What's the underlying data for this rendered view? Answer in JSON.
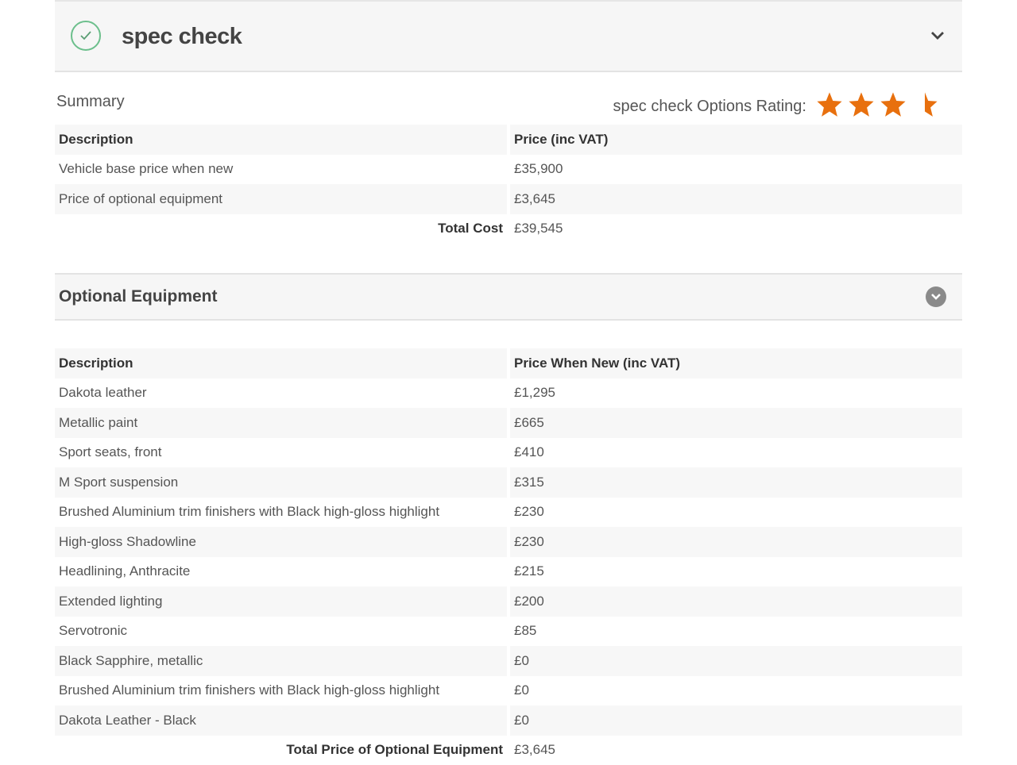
{
  "header": {
    "title": "spec check",
    "icon": "check-circle-icon",
    "collapse_icon": "chevron-down-icon"
  },
  "summary": {
    "label": "Summary",
    "rating_label": "spec check Options Rating:",
    "rating": 3.5,
    "rating_max": 5,
    "star_color": "#e8700e",
    "columns": [
      "Description",
      "Price (inc VAT)"
    ],
    "rows": [
      [
        "Vehicle base price when new",
        "£35,900"
      ],
      [
        "Price of optional equipment",
        "£3,645"
      ]
    ],
    "total_label": "Total Cost",
    "total_value": "£39,545"
  },
  "optional": {
    "title": "Optional Equipment",
    "columns": [
      "Description",
      "Price When New (inc VAT)"
    ],
    "rows": [
      [
        "Dakota leather",
        "£1,295"
      ],
      [
        "Metallic paint",
        "£665"
      ],
      [
        "Sport seats, front",
        "£410"
      ],
      [
        "M Sport suspension",
        "£315"
      ],
      [
        "Brushed Aluminium trim finishers with Black high-gloss highlight",
        "£230"
      ],
      [
        "High-gloss Shadowline",
        "£230"
      ],
      [
        "Headlining, Anthracite",
        "£215"
      ],
      [
        "Extended lighting",
        "£200"
      ],
      [
        "Servotronic",
        "£85"
      ],
      [
        "Black Sapphire, metallic",
        "£0"
      ],
      [
        "Brushed Aluminium trim finishers with Black high-gloss highlight",
        "£0"
      ],
      [
        "Dakota Leather - Black",
        "£0"
      ]
    ],
    "total_label": "Total Price of Optional Equipment",
    "total_value": "£3,645"
  }
}
